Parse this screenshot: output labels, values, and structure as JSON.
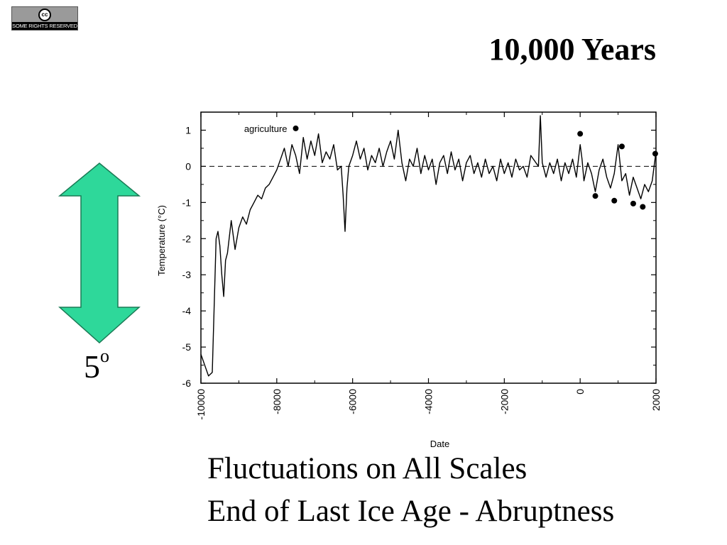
{
  "badge": {
    "symbol": "cc",
    "text": "SOME RIGHTS RESERVED"
  },
  "slide": {
    "title": "10,000 Years",
    "scale_value": "5",
    "scale_unit": "o",
    "captions": [
      "Fluctuations on All Scales",
      "End of Last Ice Age - Abruptness"
    ]
  },
  "colors": {
    "arrow": "#2ed89a",
    "arrow_outline": "#1a7a55"
  },
  "chart_data": {
    "type": "line",
    "xlabel": "Date",
    "ylabel": "Temperature (°C)",
    "xlim": [
      -10000,
      2000
    ],
    "ylim": [
      -6,
      1.5
    ],
    "x_ticks": [
      "-10000",
      "-8000",
      "-6000",
      "-4000",
      "-2000",
      "0",
      "2000"
    ],
    "y_ticks": [
      "1",
      "0",
      "-1",
      "-2",
      "-3",
      "-4",
      "-5",
      "-6"
    ],
    "reference_line": 0,
    "annotation": {
      "text": "agriculture",
      "x": -7500,
      "y": 1.05
    },
    "series": [
      {
        "values": [
          [
            -10000,
            -5.2
          ],
          [
            -9800,
            -5.8
          ],
          [
            -9700,
            -5.7
          ],
          [
            -9600,
            -2.0
          ],
          [
            -9550,
            -1.8
          ],
          [
            -9500,
            -2.2
          ],
          [
            -9450,
            -3.0
          ],
          [
            -9400,
            -3.6
          ],
          [
            -9350,
            -2.6
          ],
          [
            -9300,
            -2.4
          ],
          [
            -9200,
            -1.5
          ],
          [
            -9100,
            -2.3
          ],
          [
            -9000,
            -1.7
          ],
          [
            -8900,
            -1.4
          ],
          [
            -8800,
            -1.6
          ],
          [
            -8700,
            -1.2
          ],
          [
            -8600,
            -1.0
          ],
          [
            -8500,
            -0.8
          ],
          [
            -8400,
            -0.9
          ],
          [
            -8300,
            -0.6
          ],
          [
            -8200,
            -0.5
          ],
          [
            -8100,
            -0.3
          ],
          [
            -8000,
            -0.1
          ],
          [
            -7900,
            0.2
          ],
          [
            -7800,
            0.5
          ],
          [
            -7700,
            0.0
          ],
          [
            -7600,
            0.6
          ],
          [
            -7500,
            0.3
          ],
          [
            -7400,
            -0.2
          ],
          [
            -7300,
            0.8
          ],
          [
            -7200,
            0.2
          ],
          [
            -7100,
            0.7
          ],
          [
            -7000,
            0.3
          ],
          [
            -6900,
            0.9
          ],
          [
            -6800,
            0.1
          ],
          [
            -6700,
            0.4
          ],
          [
            -6600,
            0.2
          ],
          [
            -6500,
            0.6
          ],
          [
            -6400,
            -0.1
          ],
          [
            -6300,
            0.0
          ],
          [
            -6250,
            -0.8
          ],
          [
            -6200,
            -1.8
          ],
          [
            -6150,
            -0.6
          ],
          [
            -6100,
            0.0
          ],
          [
            -6000,
            0.3
          ],
          [
            -5900,
            0.7
          ],
          [
            -5800,
            0.2
          ],
          [
            -5700,
            0.5
          ],
          [
            -5600,
            -0.1
          ],
          [
            -5500,
            0.3
          ],
          [
            -5400,
            0.1
          ],
          [
            -5300,
            0.5
          ],
          [
            -5200,
            0.0
          ],
          [
            -5100,
            0.4
          ],
          [
            -5000,
            0.7
          ],
          [
            -4900,
            0.2
          ],
          [
            -4800,
            1.0
          ],
          [
            -4700,
            0.1
          ],
          [
            -4600,
            -0.4
          ],
          [
            -4500,
            0.2
          ],
          [
            -4400,
            0.0
          ],
          [
            -4300,
            0.5
          ],
          [
            -4200,
            -0.2
          ],
          [
            -4100,
            0.3
          ],
          [
            -4000,
            -0.1
          ],
          [
            -3900,
            0.2
          ],
          [
            -3800,
            -0.5
          ],
          [
            -3700,
            0.1
          ],
          [
            -3600,
            0.3
          ],
          [
            -3500,
            -0.2
          ],
          [
            -3400,
            0.4
          ],
          [
            -3300,
            -0.1
          ],
          [
            -3200,
            0.2
          ],
          [
            -3100,
            -0.4
          ],
          [
            -3000,
            0.1
          ],
          [
            -2900,
            0.3
          ],
          [
            -2800,
            -0.2
          ],
          [
            -2700,
            0.1
          ],
          [
            -2600,
            -0.3
          ],
          [
            -2500,
            0.2
          ],
          [
            -2400,
            -0.2
          ],
          [
            -2300,
            0.0
          ],
          [
            -2200,
            -0.4
          ],
          [
            -2100,
            0.2
          ],
          [
            -2000,
            -0.2
          ],
          [
            -1900,
            0.1
          ],
          [
            -1800,
            -0.3
          ],
          [
            -1700,
            0.2
          ],
          [
            -1600,
            -0.1
          ],
          [
            -1500,
            0.0
          ],
          [
            -1400,
            -0.3
          ],
          [
            -1300,
            0.3
          ],
          [
            -1100,
            0.0
          ],
          [
            -1050,
            1.4
          ],
          [
            -1000,
            0.1
          ],
          [
            -900,
            -0.3
          ],
          [
            -800,
            0.1
          ],
          [
            -700,
            -0.2
          ],
          [
            -600,
            0.2
          ],
          [
            -500,
            -0.4
          ],
          [
            -400,
            0.1
          ],
          [
            -300,
            -0.2
          ],
          [
            -200,
            0.2
          ],
          [
            -100,
            -0.3
          ],
          [
            0,
            0.6
          ],
          [
            50,
            0.2
          ],
          [
            100,
            -0.4
          ],
          [
            200,
            0.1
          ],
          [
            300,
            -0.2
          ],
          [
            400,
            -0.7
          ],
          [
            500,
            -0.1
          ],
          [
            600,
            0.2
          ],
          [
            700,
            -0.3
          ],
          [
            800,
            -0.6
          ],
          [
            900,
            -0.2
          ],
          [
            1000,
            0.6
          ],
          [
            1050,
            0.1
          ],
          [
            1100,
            -0.4
          ],
          [
            1200,
            -0.2
          ],
          [
            1300,
            -0.8
          ],
          [
            1400,
            -0.3
          ],
          [
            1500,
            -0.6
          ],
          [
            1600,
            -0.9
          ],
          [
            1700,
            -0.5
          ],
          [
            1800,
            -0.7
          ],
          [
            1900,
            -0.4
          ],
          [
            1950,
            0.0
          ],
          [
            2000,
            0.4
          ]
        ]
      }
    ],
    "markers": [
      [
        -7500,
        1.05
      ],
      [
        0,
        0.9
      ],
      [
        400,
        -0.82
      ],
      [
        900,
        -0.95
      ],
      [
        1100,
        0.55
      ],
      [
        1400,
        -1.03
      ],
      [
        1650,
        -1.12
      ],
      [
        1980,
        0.35
      ]
    ]
  }
}
